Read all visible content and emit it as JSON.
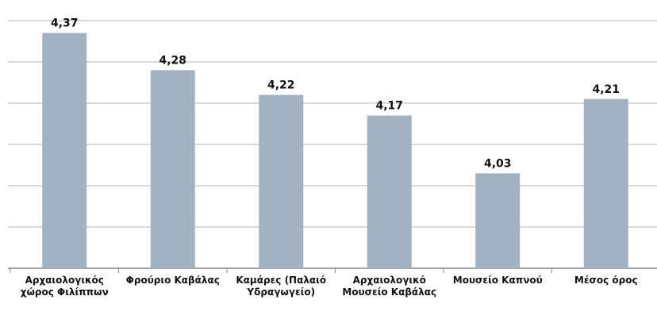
{
  "chart_data": {
    "type": "bar",
    "categories": [
      "Αρχαιολογικός χώρος Φιλίππων",
      "Φρούριο Καβάλας",
      "Καμάρες (Παλαιό Υδραγωγείο)",
      "Αρχαιολογικό Μουσείο Καβάλας",
      "Μουσείο Καπνού",
      "Μέσος όρος"
    ],
    "values": [
      4.37,
      4.28,
      4.22,
      4.17,
      4.03,
      4.21
    ],
    "value_labels": [
      "4,37",
      "4,28",
      "4,22",
      "4,17",
      "4,03",
      "4,21"
    ],
    "color": "#a3b2c2",
    "ylim": [
      3.8,
      4.45
    ],
    "yticks": [
      3.8,
      3.9,
      4.0,
      4.1,
      4.2,
      4.3,
      4.4
    ],
    "grid": true
  }
}
